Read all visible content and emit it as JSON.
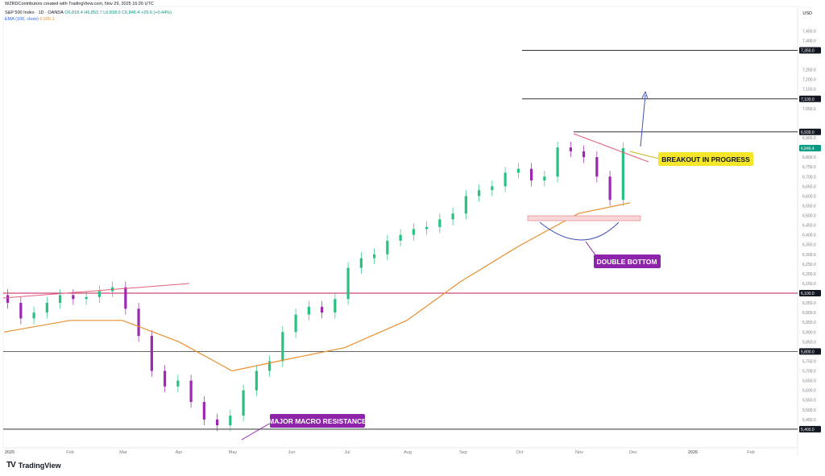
{
  "header": {
    "attribution": "WZRDContributors created with TradingView.com, Nov 29, 2025 16:26 UTC",
    "symbol": "S&P 500 Index · 1D · OANDA",
    "ohlc": "O6,818.4  H6,853.7  L6,818.0  C6,846.4  +29.6 (+0.44%)",
    "ema_label": "EMA (100, close)",
    "ema_value": "6,565.1"
  },
  "axis_currency": "USD",
  "brand": "TradingView",
  "colors": {
    "up": "#26c281",
    "down": "#9c27b0",
    "ema": "#e8902f",
    "trendline": "#e0607a",
    "level": "#000000",
    "callout_yellow": "#f5e62a",
    "callout_purple": "#8e24aa",
    "arrow_blue": "#3f51b5"
  },
  "chart_data": {
    "type": "line",
    "title": "S&P 500 Index · 1D · OANDA",
    "x_labels": [
      "2025",
      "Feb",
      "Mar",
      "Apr",
      "May",
      "Jun",
      "Jul",
      "Aug",
      "Sep",
      "Oct",
      "Nov",
      "Dec",
      "2026",
      "Feb"
    ],
    "y_ticks": [
      "7,450.0",
      "7,400.0",
      "7,250.0",
      "7,200.0",
      "7,150.0",
      "7,100.0",
      "7,050.0",
      "6,900.0",
      "6,850.0",
      "6,800.0",
      "6,750.0",
      "6,700.0",
      "6,650.0",
      "6,600.0",
      "6,550.0",
      "6,500.0",
      "6,450.0",
      "6,400.0",
      "6,350.0",
      "6,300.0",
      "6,250.0",
      "6,200.0",
      "6,150.0",
      "6,050.0",
      "6,000.0",
      "5,950.0",
      "5,900.0",
      "5,850.0",
      "5,750.0",
      "5,700.0",
      "5,650.0",
      "5,600.0",
      "5,550.0",
      "5,500.0",
      "5,450.0"
    ],
    "ylim": [
      5400,
      7500
    ],
    "series": [
      {
        "name": "S&P 500 Index",
        "x": [
          "2025-01",
          "2025-01",
          "2025-01",
          "2025-01",
          "2025-01",
          "2025-02",
          "2025-02",
          "2025-02",
          "2025-02",
          "2025-03",
          "2025-03",
          "2025-03",
          "2025-03",
          "2025-03",
          "2025-04",
          "2025-04",
          "2025-04",
          "2025-04",
          "2025-05",
          "2025-05",
          "2025-05",
          "2025-05",
          "2025-06",
          "2025-06",
          "2025-06",
          "2025-06",
          "2025-07",
          "2025-07",
          "2025-07",
          "2025-07",
          "2025-08",
          "2025-08",
          "2025-08",
          "2025-08",
          "2025-09",
          "2025-09",
          "2025-09",
          "2025-09",
          "2025-10",
          "2025-10",
          "2025-10",
          "2025-10",
          "2025-10",
          "2025-11",
          "2025-11",
          "2025-11",
          "2025-11",
          "2025-11"
        ],
        "values": [
          6050,
          5970,
          6000,
          6050,
          6090,
          6070,
          6080,
          6110,
          6130,
          6020,
          5880,
          5700,
          5620,
          5650,
          5540,
          5450,
          5420,
          5470,
          5600,
          5700,
          5750,
          5900,
          5990,
          6030,
          6000,
          6070,
          6230,
          6280,
          6300,
          6370,
          6400,
          6430,
          6440,
          6480,
          6510,
          6600,
          6630,
          6650,
          6720,
          6740,
          6680,
          6700,
          6850,
          6830,
          6800,
          6700,
          6580,
          6846
        ]
      },
      {
        "name": "EMA (100, close)",
        "x": [
          "2025-01",
          "2025-02",
          "2025-03",
          "2025-04",
          "2025-05",
          "2025-06",
          "2025-07",
          "2025-08",
          "2025-09",
          "2025-10",
          "2025-11",
          "2025-11"
        ],
        "values": [
          5900,
          5960,
          5960,
          5850,
          5700,
          5760,
          5820,
          5960,
          6160,
          6340,
          6510,
          6565
        ]
      }
    ],
    "levels": [
      "7,350.0",
      "7,100.0",
      "6,930.0",
      "6,100.0",
      "5,800.0",
      "5,400.0"
    ],
    "last_price": "6,846.4",
    "annotations": [
      "BREAKOUT IN PROGRESS",
      "DOUBLE BOTTOM",
      "MAJOR MACRO RESISTANCE"
    ]
  }
}
